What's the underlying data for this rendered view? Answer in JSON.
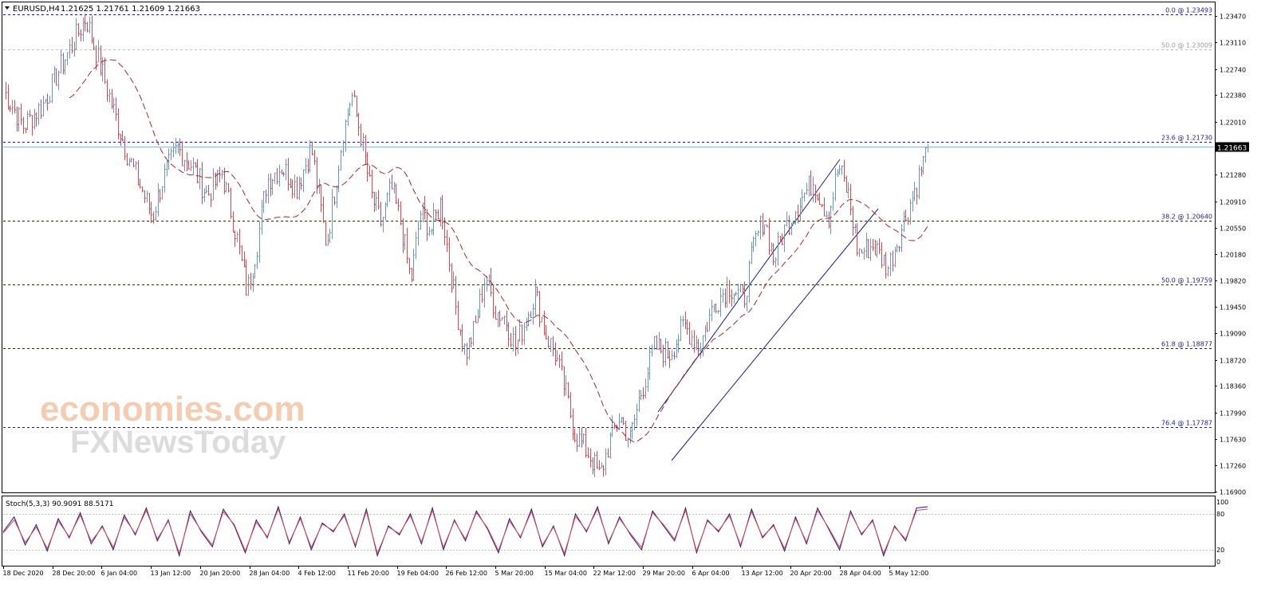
{
  "header": {
    "symbol_label": "EURUSD,H4",
    "ohlc": "1.21625 1.21761 1.21609 1.21663"
  },
  "colors": {
    "bull": "#6a95c8",
    "bear": "#e0474f",
    "ma": "#a52a2a",
    "fib": "#1c1c8c",
    "fib50top": "#bdbdbd",
    "channel": "#1c1c8c",
    "price_line": "#8fb8d8",
    "stoch_main": "#1c1c8c",
    "stoch_signal": "#e0474f",
    "watermark": "#f1c4a4",
    "watermark2": "#d9d9d9"
  },
  "watermark": {
    "line1": "economies.com",
    "line2": "FXNewsToday"
  },
  "chart_data": [
    {
      "type": "candlestick",
      "title": "EURUSD,H4",
      "ylim": [
        1.169,
        1.2365
      ],
      "y_ticks": [
        "1.23470",
        "1.23110",
        "1.22740",
        "1.22380",
        "1.22010",
        "1.21280",
        "1.20910",
        "1.20550",
        "1.20180",
        "1.19820",
        "1.19450",
        "1.19090",
        "1.18720",
        "1.18360",
        "1.17990",
        "1.17630",
        "1.17260",
        "1.16900"
      ],
      "current_price": "1.21663",
      "x_ticks": [
        "18 Dec 2020",
        "28 Dec 20:00",
        "6 Jan 04:00",
        "13 Jan 12:00",
        "20 Jan 20:00",
        "28 Jan 04:00",
        "4 Feb 12:00",
        "11 Feb 20:00",
        "19 Feb 04:00",
        "26 Feb 12:00",
        "5 Mar 20:00",
        "15 Mar 04:00",
        "22 Mar 12:00",
        "29 Mar 20:00",
        "6 Apr 04:00",
        "13 Apr 12:00",
        "20 Apr 20:00",
        "28 Apr 04:00",
        "5 May 12:00"
      ],
      "price_path": [
        [
          0,
          1.2245
        ],
        [
          0.02,
          1.2195
        ],
        [
          0.04,
          1.2225
        ],
        [
          0.055,
          1.227
        ],
        [
          0.07,
          1.231
        ],
        [
          0.083,
          1.2345
        ],
        [
          0.095,
          1.229
        ],
        [
          0.11,
          1.222
        ],
        [
          0.125,
          1.2155
        ],
        [
          0.14,
          1.2105
        ],
        [
          0.15,
          1.207
        ],
        [
          0.16,
          1.212
        ],
        [
          0.175,
          1.2165
        ],
        [
          0.19,
          1.214
        ],
        [
          0.205,
          1.21
        ],
        [
          0.22,
          1.213
        ],
        [
          0.235,
          1.204
        ],
        [
          0.245,
          1.1965
        ],
        [
          0.255,
          1.203
        ],
        [
          0.265,
          1.212
        ],
        [
          0.28,
          1.214
        ],
        [
          0.295,
          1.211
        ],
        [
          0.31,
          1.2165
        ],
        [
          0.325,
          1.203
        ],
        [
          0.34,
          1.217
        ],
        [
          0.35,
          1.224
        ],
        [
          0.36,
          1.218
        ],
        [
          0.37,
          1.21
        ],
        [
          0.38,
          1.206
        ],
        [
          0.39,
          1.211
        ],
        [
          0.4,
          1.206
        ],
        [
          0.41,
          1.198
        ],
        [
          0.42,
          1.208
        ],
        [
          0.43,
          1.205
        ],
        [
          0.44,
          1.209
        ],
        [
          0.455,
          1.1945
        ],
        [
          0.465,
          1.188
        ],
        [
          0.475,
          1.192
        ],
        [
          0.485,
          1.199
        ],
        [
          0.495,
          1.194
        ],
        [
          0.505,
          1.193
        ],
        [
          0.515,
          1.189
        ],
        [
          0.525,
          1.1925
        ],
        [
          0.535,
          1.1965
        ],
        [
          0.545,
          1.191
        ],
        [
          0.555,
          1.188
        ],
        [
          0.565,
          1.183
        ],
        [
          0.575,
          1.177
        ],
        [
          0.59,
          1.174
        ],
        [
          0.6,
          1.171
        ],
        [
          0.61,
          1.176
        ],
        [
          0.62,
          1.1795
        ],
        [
          0.63,
          1.176
        ],
        [
          0.64,
          1.182
        ],
        [
          0.655,
          1.189
        ],
        [
          0.67,
          1.188
        ],
        [
          0.685,
          1.192
        ],
        [
          0.7,
          1.189
        ],
        [
          0.715,
          1.195
        ],
        [
          0.73,
          1.1975
        ],
        [
          0.745,
          1.1955
        ],
        [
          0.755,
          1.203
        ],
        [
          0.765,
          1.207
        ],
        [
          0.775,
          1.201
        ],
        [
          0.785,
          1.205
        ],
        [
          0.8,
          1.209
        ],
        [
          0.815,
          1.212
        ],
        [
          0.83,
          1.207
        ],
        [
          0.84,
          1.214
        ],
        [
          0.85,
          1.21
        ],
        [
          0.86,
          1.202
        ],
        [
          0.875,
          1.203
        ],
        [
          0.89,
          1.2
        ],
        [
          0.9,
          1.204
        ],
        [
          0.91,
          1.208
        ],
        [
          0.92,
          1.212
        ],
        [
          0.93,
          1.2166
        ]
      ]
    },
    {
      "type": "line",
      "title": "Stoch(5,3,3) 90.9091 88.5171",
      "ylim": [
        0,
        100
      ],
      "y_ticks": [
        "100",
        "80",
        "20",
        "0"
      ],
      "levels": [
        80,
        20
      ],
      "series": [
        {
          "values": [
            50,
            75,
            28,
            62,
            18,
            72,
            40,
            82,
            30,
            60,
            20,
            78,
            45,
            90,
            35,
            70,
            10,
            85,
            50,
            25,
            88,
            60,
            15,
            70,
            40,
            92,
            30,
            75,
            20,
            65,
            50,
            80,
            25,
            88,
            10,
            60,
            45,
            80,
            30,
            90,
            20,
            70,
            35,
            85,
            55,
            15,
            72,
            40,
            88,
            25,
            60,
            10,
            80,
            50,
            92,
            30,
            75,
            45,
            20,
            85,
            60,
            35,
            90,
            15,
            70,
            50,
            80,
            25,
            88,
            40,
            62,
            18,
            75,
            30,
            90,
            55,
            20,
            85,
            45,
            70,
            10,
            60,
            35,
            90,
            92
          ]
        },
        {
          "values": [
            48,
            70,
            32,
            58,
            22,
            68,
            42,
            78,
            34,
            58,
            24,
            74,
            47,
            86,
            38,
            68,
            14,
            80,
            52,
            28,
            84,
            62,
            18,
            66,
            42,
            88,
            33,
            72,
            24,
            63,
            52,
            77,
            28,
            84,
            14,
            58,
            47,
            77,
            33,
            86,
            24,
            68,
            38,
            82,
            57,
            19,
            68,
            42,
            84,
            28,
            58,
            14,
            76,
            52,
            88,
            33,
            72,
            47,
            24,
            82,
            62,
            38,
            86,
            18,
            68,
            52,
            77,
            28,
            84,
            42,
            60,
            22,
            72,
            33,
            86,
            57,
            24,
            82,
            47,
            68,
            14,
            58,
            38,
            86,
            88
          ]
        }
      ]
    }
  ],
  "fib_levels": [
    {
      "label": "0.0 @ 1.23493",
      "price": 1.23493,
      "faint": false
    },
    {
      "label": "50.0 @ 1.23009",
      "price": 1.23009,
      "faint": true
    },
    {
      "label": "23.6 @ 1.21730",
      "price": 1.2173,
      "faint": false
    },
    {
      "label": "38.2 @ 1.20640",
      "price": 1.2064,
      "faint": false
    },
    {
      "label": "50.0 @ 1.19759",
      "price": 1.19759,
      "faint": false
    },
    {
      "label": "61.8 @ 1.18877",
      "price": 1.18877,
      "faint": false
    },
    {
      "label": "76.4 @ 1.17787",
      "price": 1.17787,
      "faint": false
    }
  ]
}
